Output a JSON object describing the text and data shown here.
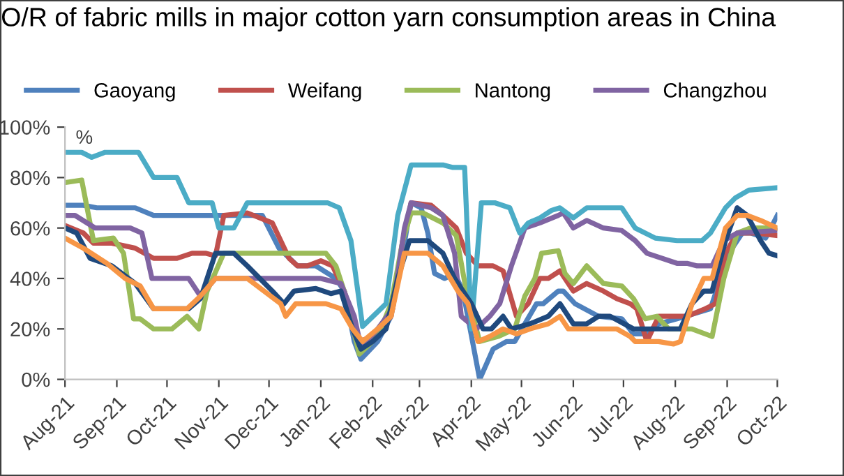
{
  "chart_data": {
    "type": "line",
    "title": "O/R of fabric mills in major cotton yarn consumption areas in China",
    "ylabel": "%",
    "xlim": [
      "2021-08-01",
      "2022-10-01"
    ],
    "xticks": [
      {
        "value": "2021-08-01",
        "label": "Aug-21"
      },
      {
        "value": "2021-09-01",
        "label": "Sep-21"
      },
      {
        "value": "2021-10-01",
        "label": "Oct-21"
      },
      {
        "value": "2021-11-01",
        "label": "Nov-21"
      },
      {
        "value": "2021-12-01",
        "label": "Dec-21"
      },
      {
        "value": "2022-01-01",
        "label": "Jan-22"
      },
      {
        "value": "2022-02-01",
        "label": "Feb-22"
      },
      {
        "value": "2022-03-01",
        "label": "Mar-22"
      },
      {
        "value": "2022-04-01",
        "label": "Apr-22"
      },
      {
        "value": "2022-05-01",
        "label": "May-22"
      },
      {
        "value": "2022-06-01",
        "label": "Jun-22"
      },
      {
        "value": "2022-07-01",
        "label": "Jul-22"
      },
      {
        "value": "2022-08-01",
        "label": "Aug-22"
      },
      {
        "value": "2022-09-01",
        "label": "Sep-22"
      },
      {
        "value": "2022-10-01",
        "label": "Oct-22"
      }
    ],
    "ylim": [
      0,
      100
    ],
    "yticks": [
      {
        "value": 0,
        "label": "0%"
      },
      {
        "value": 20,
        "label": "20%"
      },
      {
        "value": 40,
        "label": "40%"
      },
      {
        "value": 60,
        "label": "60%"
      },
      {
        "value": 80,
        "label": "80%"
      },
      {
        "value": 100,
        "label": "100%"
      }
    ],
    "grid": false,
    "legend": "top",
    "marker": "none",
    "line_style": "solid",
    "series": [
      {
        "name": "Gaoyang",
        "color": "#4f81bd",
        "x": [
          "2021-08-01",
          "2021-08-12",
          "2021-08-20",
          "2021-09-12",
          "2021-09-23",
          "2021-11-27",
          "2021-12-07",
          "2021-12-18",
          "2021-12-29",
          "2022-01-10",
          "2022-01-15",
          "2022-01-21",
          "2022-01-25",
          "2022-02-04",
          "2022-02-12",
          "2022-02-19",
          "2022-02-24",
          "2022-03-02",
          "2022-03-06",
          "2022-03-10",
          "2022-03-16",
          "2022-03-22",
          "2022-03-27",
          "2022-04-06",
          "2022-04-14",
          "2022-04-22",
          "2022-04-27",
          "2022-05-03",
          "2022-05-10",
          "2022-05-14",
          "2022-05-23",
          "2022-05-26",
          "2022-06-02",
          "2022-06-16",
          "2022-06-30",
          "2022-07-07",
          "2022-07-14",
          "2022-07-22",
          "2022-08-02",
          "2022-08-22",
          "2022-09-02",
          "2022-09-10",
          "2022-09-15",
          "2022-09-24",
          "2022-10-01"
        ],
        "values": [
          69,
          69,
          68,
          68,
          65,
          65,
          52,
          45,
          45,
          40,
          35,
          15,
          8,
          15,
          25,
          50,
          70,
          68,
          58,
          42,
          40,
          42,
          35,
          0,
          12,
          15,
          15,
          22,
          30,
          30,
          35,
          35,
          30,
          25,
          24,
          18,
          18,
          22,
          24,
          28,
          50,
          58,
          58,
          56,
          65
        ]
      },
      {
        "name": "Weifang",
        "color": "#c0504d",
        "x": [
          "2021-08-01",
          "2021-08-12",
          "2021-08-18",
          "2021-08-29",
          "2021-09-12",
          "2021-09-23",
          "2021-10-07",
          "2021-10-16",
          "2021-10-24",
          "2021-10-30",
          "2021-11-04",
          "2021-11-18",
          "2021-12-03",
          "2021-12-08",
          "2021-12-13",
          "2021-12-18",
          "2021-12-24",
          "2022-01-01",
          "2022-01-08",
          "2022-01-15",
          "2022-01-24",
          "2022-02-01",
          "2022-02-12",
          "2022-02-19",
          "2022-02-24",
          "2022-03-08",
          "2022-03-15",
          "2022-03-23",
          "2022-03-29",
          "2022-04-05",
          "2022-04-14",
          "2022-04-20",
          "2022-04-28",
          "2022-05-05",
          "2022-05-12",
          "2022-05-17",
          "2022-05-24",
          "2022-06-01",
          "2022-06-09",
          "2022-06-19",
          "2022-06-27",
          "2022-07-05",
          "2022-07-09",
          "2022-07-15",
          "2022-07-22",
          "2022-08-08",
          "2022-08-19",
          "2022-08-25",
          "2022-08-31",
          "2022-09-07",
          "2022-09-18",
          "2022-10-01"
        ],
        "values": [
          61,
          58,
          54,
          54,
          52,
          48,
          48,
          50,
          50,
          49,
          65,
          66,
          62,
          55,
          48,
          45,
          45,
          47,
          45,
          35,
          15,
          17,
          25,
          55,
          70,
          69,
          65,
          60,
          50,
          45,
          45,
          43,
          25,
          30,
          40,
          40,
          43,
          35,
          38,
          35,
          32,
          30,
          28,
          15,
          25,
          25,
          28,
          30,
          50,
          58,
          58,
          57
        ]
      },
      {
        "name": "Nantong",
        "color": "#9bbb59",
        "x": [
          "2021-08-01",
          "2021-08-11",
          "2021-08-18",
          "2021-08-30",
          "2021-09-05",
          "2021-09-11",
          "2021-09-15",
          "2021-09-23",
          "2021-10-04",
          "2021-10-13",
          "2021-10-20",
          "2021-10-25",
          "2021-11-04",
          "2022-01-04",
          "2022-01-10",
          "2022-01-15",
          "2022-01-24",
          "2022-02-04",
          "2022-02-12",
          "2022-02-19",
          "2022-02-24",
          "2022-03-03",
          "2022-03-15",
          "2022-03-23",
          "2022-03-29",
          "2022-04-06",
          "2022-04-17",
          "2022-04-27",
          "2022-05-03",
          "2022-05-09",
          "2022-05-13",
          "2022-05-23",
          "2022-05-27",
          "2022-06-01",
          "2022-06-09",
          "2022-06-19",
          "2022-06-30",
          "2022-07-07",
          "2022-07-14",
          "2022-07-21",
          "2022-07-28",
          "2022-08-11",
          "2022-08-23",
          "2022-08-30",
          "2022-09-07",
          "2022-09-15",
          "2022-10-01"
        ],
        "values": [
          78,
          79,
          55,
          56,
          50,
          24,
          24,
          20,
          20,
          25,
          20,
          35,
          50,
          50,
          45,
          35,
          10,
          17,
          30,
          55,
          66,
          66,
          62,
          57,
          35,
          15,
          17,
          20,
          33,
          40,
          50,
          51,
          42,
          38,
          45,
          38,
          37,
          32,
          24,
          25,
          20,
          20,
          17,
          40,
          58,
          60,
          60
        ]
      },
      {
        "name": "Changzhou",
        "color": "#8064a2",
        "x": [
          "2021-08-01",
          "2021-08-07",
          "2021-08-19",
          "2021-09-09",
          "2021-09-16",
          "2021-09-22",
          "2021-10-14",
          "2021-10-21",
          "2021-10-30",
          "2022-01-01",
          "2022-01-13",
          "2022-01-21",
          "2022-01-25",
          "2022-02-04",
          "2022-02-13",
          "2022-02-20",
          "2022-02-24",
          "2022-03-08",
          "2022-03-15",
          "2022-03-22",
          "2022-03-26",
          "2022-04-04",
          "2022-04-12",
          "2022-04-18",
          "2022-04-25",
          "2022-05-03",
          "2022-05-12",
          "2022-05-23",
          "2022-05-26",
          "2022-06-01",
          "2022-06-09",
          "2022-06-19",
          "2022-06-30",
          "2022-07-08",
          "2022-07-15",
          "2022-08-02",
          "2022-08-08",
          "2022-08-14",
          "2022-08-23",
          "2022-08-30",
          "2022-09-07",
          "2022-10-01"
        ],
        "values": [
          65,
          65,
          60,
          60,
          58,
          40,
          40,
          33,
          40,
          40,
          38,
          25,
          13,
          20,
          28,
          60,
          70,
          68,
          65,
          50,
          25,
          20,
          25,
          30,
          45,
          60,
          62,
          65,
          66,
          60,
          63,
          60,
          59,
          55,
          50,
          46,
          46,
          45,
          45,
          55,
          58,
          59
        ]
      },
      {
        "color": "#4bacc6",
        "x": [
          "2021-08-01",
          "2021-08-11",
          "2021-08-17",
          "2021-08-25",
          "2021-09-14",
          "2021-09-23",
          "2021-10-07",
          "2021-10-14",
          "2021-10-28",
          "2021-11-01",
          "2021-11-10",
          "2021-11-18",
          "2022-01-05",
          "2022-01-12",
          "2022-01-19",
          "2022-01-26",
          "2022-02-09",
          "2022-02-16",
          "2022-02-24",
          "2022-03-15",
          "2022-03-21",
          "2022-03-28",
          "2022-04-01",
          "2022-04-07",
          "2022-04-15",
          "2022-04-24",
          "2022-04-30",
          "2022-05-05",
          "2022-05-12",
          "2022-05-19",
          "2022-05-24",
          "2022-06-01",
          "2022-06-09",
          "2022-06-30",
          "2022-07-08",
          "2022-07-20",
          "2022-08-02",
          "2022-08-17",
          "2022-08-22",
          "2022-08-31",
          "2022-09-06",
          "2022-09-14",
          "2022-10-01"
        ],
        "values": [
          90,
          90,
          88,
          90,
          90,
          80,
          80,
          70,
          70,
          60,
          60,
          70,
          70,
          68,
          55,
          21,
          30,
          65,
          85,
          85,
          84,
          84,
          20,
          70,
          70,
          68,
          58,
          62,
          64,
          67,
          68,
          64,
          68,
          68,
          60,
          56,
          55,
          55,
          58,
          68,
          72,
          75,
          76
        ]
      },
      {
        "color": "#1f497d",
        "x": [
          "2021-08-01",
          "2021-08-08",
          "2021-08-16",
          "2021-08-29",
          "2021-09-12",
          "2021-09-23",
          "2021-10-14",
          "2021-10-21",
          "2021-10-30",
          "2021-11-10",
          "2021-11-18",
          "2021-12-03",
          "2021-12-10",
          "2021-12-16",
          "2021-12-29",
          "2022-01-07",
          "2022-01-13",
          "2022-01-20",
          "2022-01-25",
          "2022-02-01",
          "2022-02-09",
          "2022-02-16",
          "2022-02-23",
          "2022-03-06",
          "2022-03-15",
          "2022-03-22",
          "2022-04-01",
          "2022-04-08",
          "2022-04-13",
          "2022-04-20",
          "2022-04-25",
          "2022-05-06",
          "2022-05-17",
          "2022-05-24",
          "2022-06-01",
          "2022-06-09",
          "2022-06-16",
          "2022-06-23",
          "2022-07-07",
          "2022-08-04",
          "2022-08-11",
          "2022-08-18",
          "2022-08-23",
          "2022-08-31",
          "2022-09-07",
          "2022-09-13",
          "2022-09-21",
          "2022-09-26",
          "2022-10-01"
        ],
        "values": [
          60,
          58,
          48,
          45,
          38,
          28,
          28,
          32,
          50,
          50,
          45,
          35,
          30,
          35,
          36,
          34,
          35,
          20,
          12,
          15,
          20,
          40,
          55,
          55,
          50,
          40,
          30,
          20,
          20,
          25,
          20,
          22,
          25,
          30,
          22,
          22,
          25,
          25,
          20,
          20,
          30,
          35,
          35,
          55,
          68,
          65,
          55,
          50,
          49
        ]
      },
      {
        "color": "#f79646",
        "x": [
          "2021-08-01",
          "2021-08-12",
          "2021-08-26",
          "2021-09-06",
          "2021-09-15",
          "2021-09-23",
          "2021-10-13",
          "2021-10-21",
          "2021-10-30",
          "2021-11-18",
          "2021-12-08",
          "2021-12-11",
          "2021-12-17",
          "2022-01-04",
          "2022-01-13",
          "2022-01-20",
          "2022-01-26",
          "2022-02-04",
          "2022-02-12",
          "2022-02-20",
          "2022-03-06",
          "2022-03-15",
          "2022-03-24",
          "2022-03-30",
          "2022-04-05",
          "2022-04-12",
          "2022-04-20",
          "2022-04-28",
          "2022-05-06",
          "2022-05-17",
          "2022-05-24",
          "2022-05-29",
          "2022-06-27",
          "2022-07-05",
          "2022-07-08",
          "2022-07-22",
          "2022-07-31",
          "2022-08-04",
          "2022-08-11",
          "2022-08-18",
          "2022-08-23",
          "2022-08-31",
          "2022-09-07",
          "2022-09-13",
          "2022-09-21",
          "2022-10-01"
        ],
        "values": [
          56,
          52,
          46,
          40,
          37,
          28,
          28,
          33,
          40,
          40,
          30,
          25,
          30,
          30,
          28,
          20,
          15,
          20,
          25,
          50,
          50,
          45,
          35,
          30,
          15,
          17,
          20,
          18,
          20,
          22,
          25,
          20,
          20,
          17,
          15,
          15,
          14,
          15,
          30,
          40,
          40,
          60,
          65,
          65,
          63,
          60
        ]
      }
    ]
  }
}
